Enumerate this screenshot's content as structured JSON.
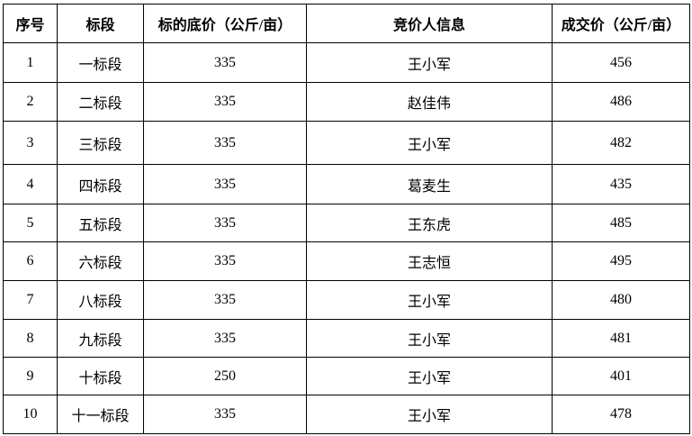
{
  "table": {
    "headers": [
      "序号",
      "标段",
      "标的底价（公斤/亩）",
      "竞价人信息",
      "成交价（公斤/亩）"
    ],
    "rows": [
      [
        "1",
        "一标段",
        "335",
        "王小军",
        "456"
      ],
      [
        "2",
        "二标段",
        "335",
        "赵佳伟",
        "486"
      ],
      [
        "3",
        "三标段",
        "335",
        "王小军",
        "482"
      ],
      [
        "4",
        "四标段",
        "335",
        "葛麦生",
        "435"
      ],
      [
        "5",
        "五标段",
        "335",
        "王东虎",
        "485"
      ],
      [
        "6",
        "六标段",
        "335",
        "王志恒",
        "495"
      ],
      [
        "7",
        "八标段",
        "335",
        "王小军",
        "480"
      ],
      [
        "8",
        "九标段",
        "335",
        "王小军",
        "481"
      ],
      [
        "9",
        "十标段",
        "250",
        "王小军",
        "401"
      ],
      [
        "10",
        "十一标段",
        "335",
        "王小军",
        "478"
      ]
    ]
  }
}
